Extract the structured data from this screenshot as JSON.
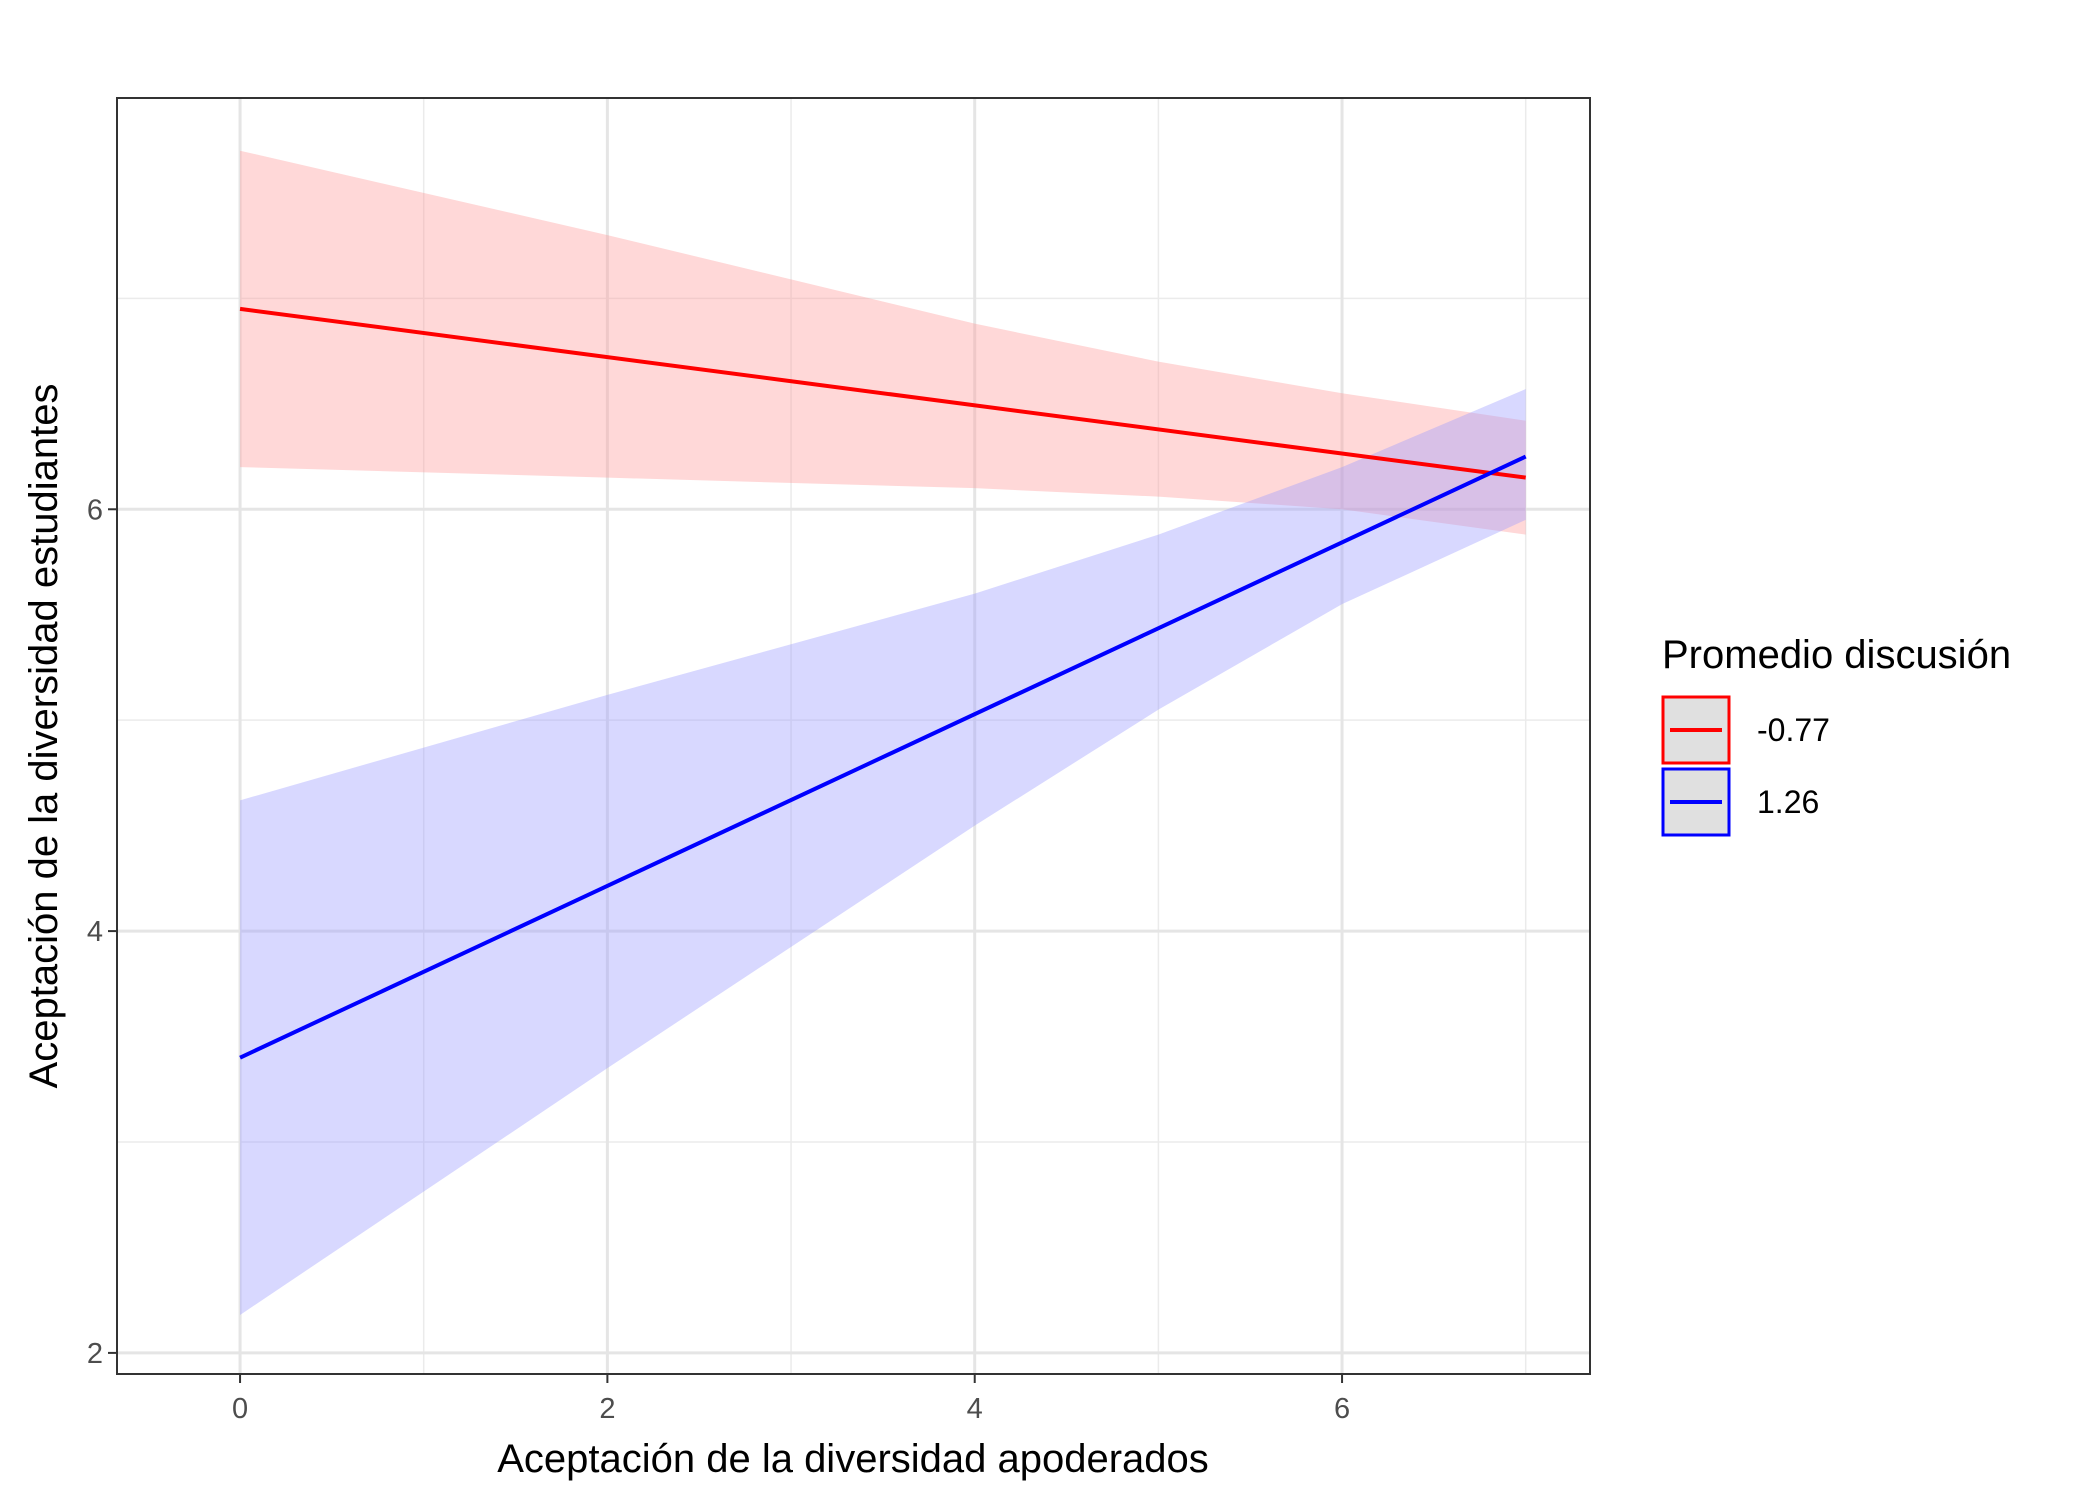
{
  "chart_data": {
    "type": "line",
    "title": "",
    "xlabel": "Aceptación de la diversidad apoderados",
    "ylabel": "Aceptación de la diversidad estudiantes",
    "xlim": [
      -0.67,
      7.35
    ],
    "ylim": [
      1.9,
      7.95
    ],
    "x_ticks": [
      0,
      2,
      4,
      6
    ],
    "x_tick_labels": [
      "0",
      "2",
      "4",
      "6"
    ],
    "y_ticks": [
      2,
      4,
      6
    ],
    "y_tick_labels": [
      "2",
      "4",
      "6"
    ],
    "grid": true,
    "legend": {
      "title": "Promedio discusión",
      "placement": "right"
    },
    "series": [
      {
        "name": "-0.77",
        "color": "#ff0000",
        "fill": "#ff9999",
        "x": [
          0,
          7
        ],
        "y": [
          6.95,
          6.15
        ],
        "band_x": [
          0,
          2,
          4,
          5,
          6,
          7
        ],
        "band_lower": [
          6.2,
          6.15,
          6.1,
          6.06,
          6.0,
          5.88
        ],
        "band_upper": [
          7.7,
          7.3,
          6.88,
          6.7,
          6.55,
          6.42
        ]
      },
      {
        "name": "1.26",
        "color": "#0000ff",
        "fill": "#9999ff",
        "x": [
          0,
          7
        ],
        "y": [
          3.4,
          6.25
        ],
        "band_x": [
          0,
          2,
          4,
          5,
          6,
          7
        ],
        "band_lower": [
          2.18,
          3.35,
          4.5,
          5.05,
          5.55,
          5.95
        ],
        "band_upper": [
          4.62,
          5.12,
          5.6,
          5.88,
          6.2,
          6.57
        ]
      }
    ]
  }
}
